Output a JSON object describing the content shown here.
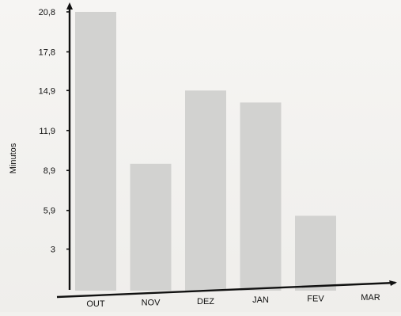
{
  "chart_data": {
    "type": "bar",
    "ylabel": "Minutos",
    "xlabel": "",
    "categories": [
      "OUT",
      "NOV",
      "DEZ",
      "JAN",
      "FEV",
      "MAR"
    ],
    "values": [
      20.8,
      9.4,
      14.9,
      14.0,
      5.5,
      0
    ],
    "yticks": [
      "3",
      "5,9",
      "8,9",
      "11,9",
      "14,9",
      "17,8",
      "20,8"
    ],
    "ytick_values": [
      3,
      5.9,
      8.9,
      11.9,
      14.9,
      17.8,
      20.8
    ],
    "ylim": [
      0,
      20.8
    ],
    "grid": false,
    "bar_color": "#d2d2d0",
    "axis_color": "#111111"
  }
}
